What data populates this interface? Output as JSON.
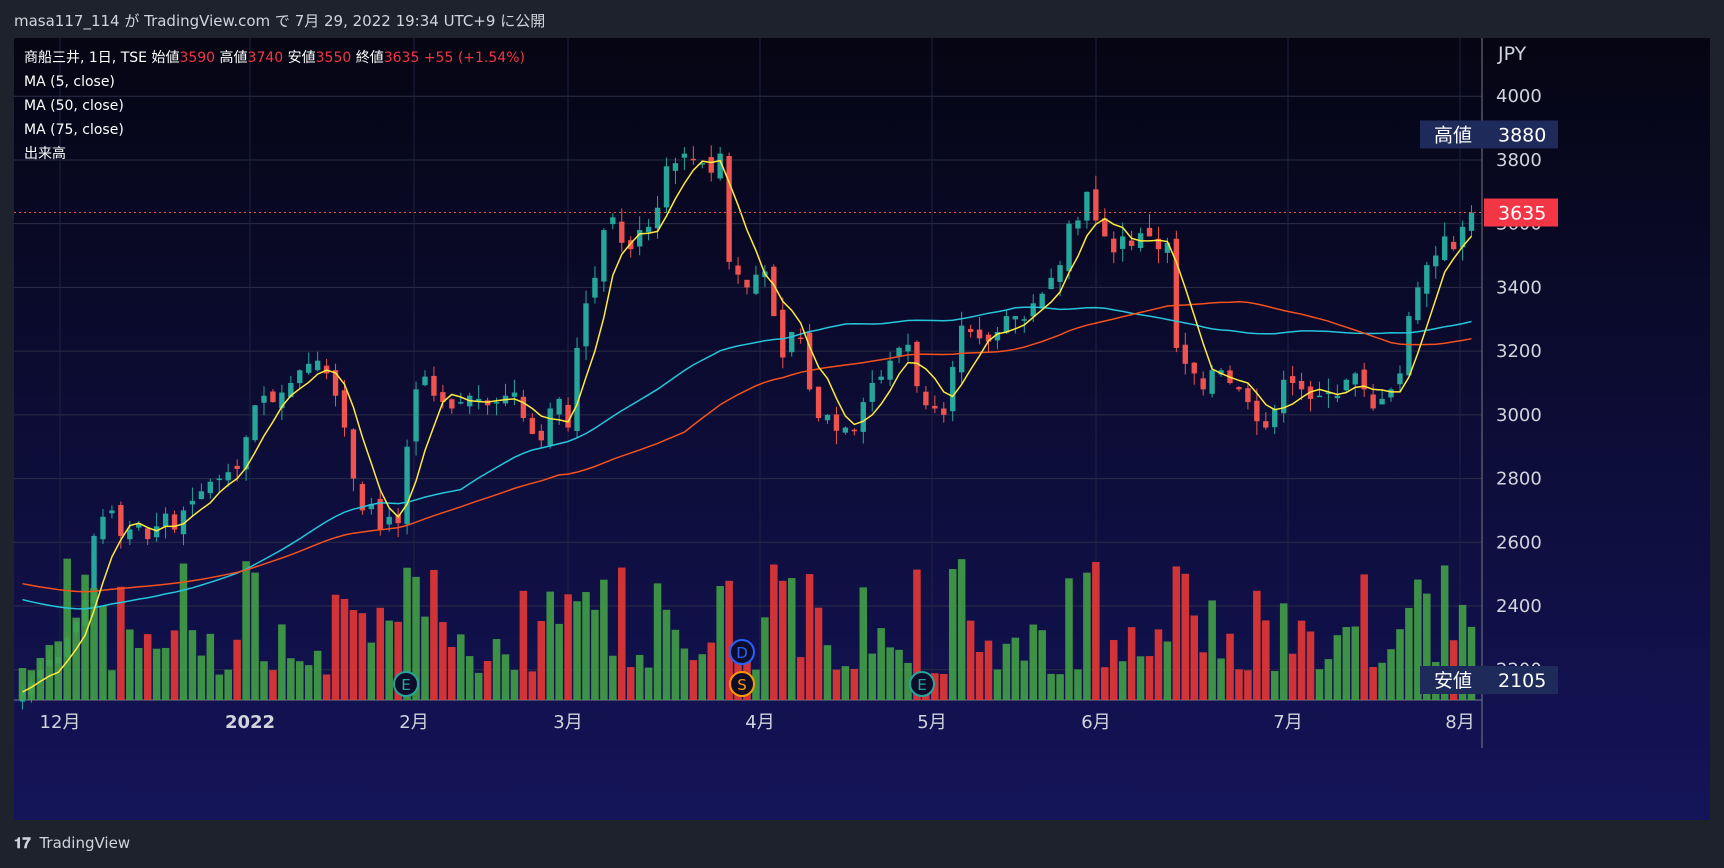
{
  "header": {
    "published": "masa117_114 が TradingView.com で 7月 29, 2022 19:34 UTC+9 に公開"
  },
  "legend": {
    "symbol": "商船三井, 1日, TSE",
    "open_label": "始値",
    "open": "3590",
    "high_label": "高値",
    "high": "3740",
    "low_label": "安値",
    "low": "3550",
    "close_label": "終値",
    "close": "3635",
    "change": "+55 (+1.54%)",
    "ma5": "MA (5, close)",
    "ma50": "MA (50, close)",
    "ma75": "MA (75, close)",
    "volume": "出来高"
  },
  "price_axis": {
    "currency": "JPY",
    "ticks": [
      "4000",
      "3800",
      "3600",
      "3400",
      "3200",
      "3000",
      "2800",
      "2600",
      "2400",
      "2200"
    ],
    "high_tag_label": "高値",
    "high_tag_value": "3880",
    "last_price": "3635",
    "low_tag_label": "安値",
    "low_tag_value": "2105"
  },
  "time_axis": {
    "labels": [
      "12月",
      "2022",
      "2月",
      "3月",
      "4月",
      "5月",
      "6月",
      "7月",
      "8月"
    ]
  },
  "markers": {
    "earnings": "E",
    "dividend": "D",
    "split": "S"
  },
  "footer": {
    "brand": "TradingView"
  },
  "colors": {
    "up": "#26a69a",
    "down": "#ef5350",
    "vol_up": "#43a047",
    "vol_down": "#e53935",
    "ma5": "#ffeb3b",
    "ma50": "#26c6da",
    "ma75": "#f4511e",
    "background": "#0d0d2b"
  },
  "chart_data": {
    "type": "candlestick",
    "y_range": [
      2105,
      4120
    ],
    "y_ticks": [
      2200,
      2400,
      2600,
      2800,
      3000,
      3200,
      3400,
      3600,
      3800,
      4000
    ],
    "x_labels": [
      "12月",
      "2022",
      "2月",
      "3月",
      "4月",
      "5月",
      "6月",
      "7月",
      "8月"
    ],
    "closes": [
      2130,
      2160,
      2200,
      2230,
      2240,
      2300,
      2350,
      2420,
      2620,
      2680,
      2700,
      2620,
      2640,
      2660,
      2610,
      2650,
      2690,
      2640,
      2700,
      2730,
      2760,
      2790,
      2800,
      2820,
      2830,
      2930,
      3030,
      3060,
      3040,
      3070,
      3100,
      3140,
      3160,
      3170,
      3130,
      3060,
      2960,
      2800,
      2700,
      2720,
      2640,
      2680,
      2660,
      2900,
      3080,
      3120,
      3060,
      3040,
      3020,
      3040,
      3060,
      3050,
      3030,
      3040,
      3060,
      3070,
      2990,
      2940,
      2920,
      3020,
      3050,
      2960,
      3210,
      3350,
      3430,
      3580,
      3620,
      3540,
      3520,
      3580,
      3590,
      3650,
      3780,
      3790,
      3820,
      3800,
      3790,
      3760,
      3820,
      3480,
      3440,
      3400,
      3440,
      3450,
      3310,
      3180,
      3260,
      3240,
      3080,
      2990,
      3000,
      2950,
      2960,
      2950,
      3040,
      3100,
      3120,
      3170,
      3210,
      3220,
      3090,
      3030,
      3020,
      3000,
      3150,
      3280,
      3260,
      3240,
      3230,
      3260,
      3310,
      3310,
      3300,
      3350,
      3380,
      3430,
      3470,
      3600,
      3610,
      3700,
      3610,
      3560,
      3510,
      3560,
      3530,
      3570,
      3560,
      3520,
      3540,
      3210,
      3160,
      3130,
      3080,
      3140,
      3140,
      3100,
      3080,
      3040,
      2980,
      2960,
      3020,
      3110,
      3100,
      3080,
      3050,
      3060,
      3070,
      3060,
      3110,
      3130,
      3080,
      3020,
      3050,
      3080,
      3130,
      3310,
      3400,
      3470,
      3500,
      3560,
      3520,
      3590,
      3635
    ],
    "candles_note": "daily OHLC, Nov 2021 – Jul 29 2022",
    "volumes_range": [
      0,
      1
    ]
  }
}
